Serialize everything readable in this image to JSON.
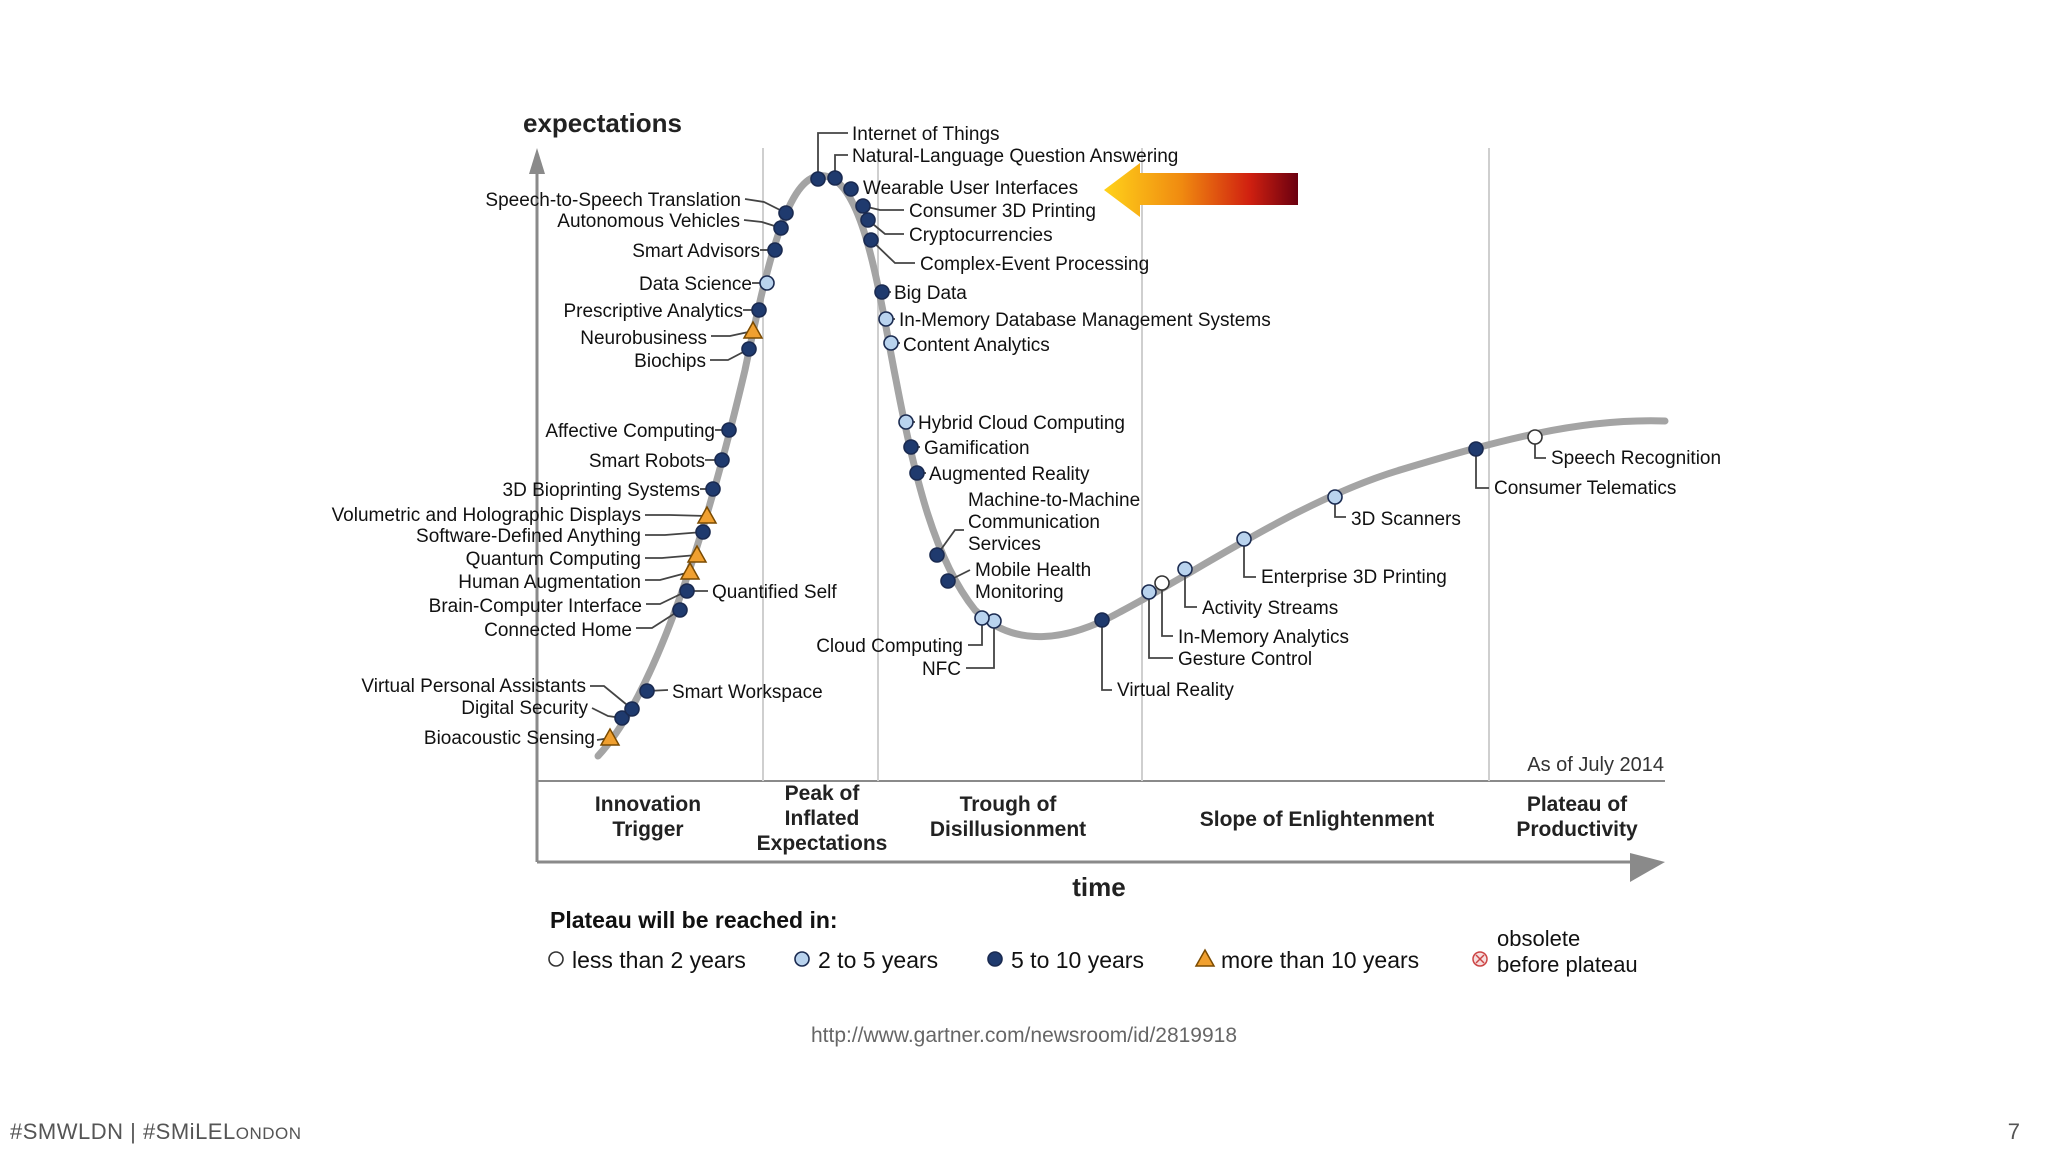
{
  "axes": {
    "y_label": "expectations",
    "x_label": "time"
  },
  "as_of": "As of July 2014",
  "phases": [
    [
      "Innovation",
      "Trigger"
    ],
    [
      "Peak of",
      "Inflated",
      "Expectations"
    ],
    [
      "Trough of",
      "Disillusionment"
    ],
    [
      "Slope of Enlightenment"
    ],
    [
      "Plateau of",
      "Productivity"
    ]
  ],
  "legend": {
    "title": "Plateau will be reached in:",
    "items": [
      {
        "label": "less than 2 years",
        "marker": "circle-open"
      },
      {
        "label": "2 to 5 years",
        "marker": "circle-light"
      },
      {
        "label": "5 to 10 years",
        "marker": "circle-dark"
      },
      {
        "label": "more than 10 years",
        "marker": "triangle"
      },
      {
        "label_lines": [
          "obsolete",
          "before plateau"
        ],
        "marker": "circle-x"
      }
    ]
  },
  "technologies": [
    {
      "name": "Bioacoustic Sensing",
      "marker": "triangle"
    },
    {
      "name": "Digital Security",
      "marker": "circle-dark"
    },
    {
      "name": "Virtual Personal Assistants",
      "marker": "circle-dark"
    },
    {
      "name": "Smart Workspace",
      "marker": "circle-dark"
    },
    {
      "name": "Connected Home",
      "marker": "circle-dark"
    },
    {
      "name": "Brain-Computer Interface",
      "marker": "circle-dark"
    },
    {
      "name": "Quantified Self",
      "marker": "circle-dark"
    },
    {
      "name": "Human Augmentation",
      "marker": "triangle"
    },
    {
      "name": "Quantum Computing",
      "marker": "triangle"
    },
    {
      "name": "Software-Defined Anything",
      "marker": "circle-dark"
    },
    {
      "name": "Volumetric and Holographic Displays",
      "marker": "triangle"
    },
    {
      "name": "3D Bioprinting Systems",
      "marker": "circle-dark"
    },
    {
      "name": "Smart Robots",
      "marker": "circle-dark"
    },
    {
      "name": "Affective  Computing",
      "marker": "circle-dark"
    },
    {
      "name": "Biochips",
      "marker": "circle-dark"
    },
    {
      "name": "Neurobusiness",
      "marker": "triangle"
    },
    {
      "name": "Prescriptive Analytics",
      "marker": "circle-dark"
    },
    {
      "name": "Data Science",
      "marker": "circle-light"
    },
    {
      "name": "Smart Advisors",
      "marker": "circle-dark"
    },
    {
      "name": "Autonomous Vehicles",
      "marker": "circle-dark"
    },
    {
      "name": "Speech-to-Speech Translation",
      "marker": "circle-dark"
    },
    {
      "name": "Internet of Things",
      "marker": "circle-dark"
    },
    {
      "name": "Natural-Language Question Answering",
      "marker": "circle-dark"
    },
    {
      "name": "Wearable User Interfaces",
      "marker": "circle-dark"
    },
    {
      "name": "Consumer 3D Printing",
      "marker": "circle-dark"
    },
    {
      "name": "Cryptocurrencies",
      "marker": "circle-dark"
    },
    {
      "name": "Complex-Event Processing",
      "marker": "circle-dark"
    },
    {
      "name": "Big Data",
      "marker": "circle-dark"
    },
    {
      "name": "In-Memory Database Management Systems",
      "marker": "circle-light"
    },
    {
      "name": "Content Analytics",
      "marker": "circle-light"
    },
    {
      "name": "Hybrid Cloud Computing",
      "marker": "circle-light"
    },
    {
      "name": "Gamification",
      "marker": "circle-dark"
    },
    {
      "name": "Augmented Reality",
      "marker": "circle-dark"
    },
    {
      "name": "Machine-to-Machine Communication Services",
      "lines": [
        "Machine-to-Machine",
        "Communication",
        "Services"
      ],
      "marker": "circle-dark"
    },
    {
      "name": "Mobile Health Monitoring",
      "lines": [
        "Mobile Health",
        "Monitoring"
      ],
      "marker": "circle-dark"
    },
    {
      "name": "NFC",
      "marker": "circle-light"
    },
    {
      "name": "Cloud Computing",
      "marker": "circle-light"
    },
    {
      "name": "Virtual Reality",
      "marker": "circle-dark"
    },
    {
      "name": "Gesture Control",
      "marker": "circle-light"
    },
    {
      "name": "In-Memory Analytics",
      "marker": "circle-open"
    },
    {
      "name": "Activity  Streams",
      "marker": "circle-light"
    },
    {
      "name": "Enterprise 3D Printing",
      "marker": "circle-light"
    },
    {
      "name": "3D Scanners",
      "marker": "circle-light"
    },
    {
      "name": "Consumer Telematics",
      "marker": "circle-dark"
    },
    {
      "name": "Speech Recognition",
      "marker": "circle-open"
    }
  ],
  "highlight": {
    "target": "Wearable User Interfaces",
    "icon": "arrow-left-icon"
  },
  "colors": {
    "dark": "#1f3a6e",
    "light": "#b9d3ee",
    "triangle": "#f0a030",
    "curve": "#999999",
    "axis": "#8a8a8a"
  },
  "source_url": "http://www.gartner.com/newsroom/id/2819918",
  "footer": {
    "hashtags_main": "#SMWLDN | #SMiLEL",
    "hashtags_small": "ONDON",
    "page_number": "7"
  }
}
